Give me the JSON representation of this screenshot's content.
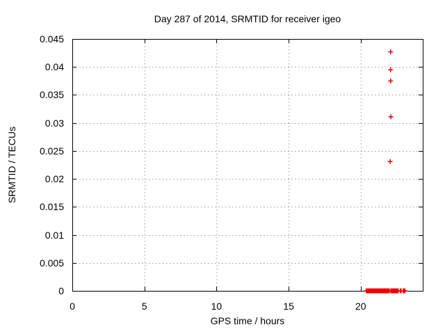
{
  "chart_data": {
    "type": "scatter",
    "title": "Day 287 of 2014, SRMTID for receiver igeo",
    "xlabel": "GPS time / hours",
    "ylabel": "SRMTID / TECUs",
    "xlim": [
      0,
      24.3
    ],
    "ylim": [
      0,
      0.045
    ],
    "xticks": [
      0,
      5,
      10,
      15,
      20
    ],
    "xtick_labels": [
      "0",
      "5",
      "10",
      "15",
      "20"
    ],
    "yticks": [
      0,
      0.005,
      0.01,
      0.015,
      0.02,
      0.025,
      0.03,
      0.035,
      0.04,
      0.045
    ],
    "ytick_labels": [
      "0",
      "0.005",
      "0.01",
      "0.015",
      "0.02",
      "0.025",
      "0.03",
      "0.035",
      "0.04",
      "0.045"
    ],
    "grid": true,
    "legend_position": "none",
    "marker": {
      "shape": "plus",
      "color": "#ee0000",
      "size": 7,
      "stroke_width": 1.5
    },
    "grid_color": "#9a9a9a",
    "axis_color": "#000000",
    "series": [
      {
        "name": "SRMTID",
        "points": [
          [
            22.07,
            0.0427
          ],
          [
            22.07,
            0.0395
          ],
          [
            22.07,
            0.0375
          ],
          [
            22.09,
            0.0311
          ],
          [
            22.04,
            0.0231
          ]
        ],
        "zero_value_segments": [
          [
            20.38,
            21.99
          ],
          [
            22.09,
            22.6
          ],
          [
            22.74,
            22.8
          ],
          [
            22.95,
            23.08
          ]
        ],
        "zero_segment_step_hours": 0.02
      }
    ]
  }
}
